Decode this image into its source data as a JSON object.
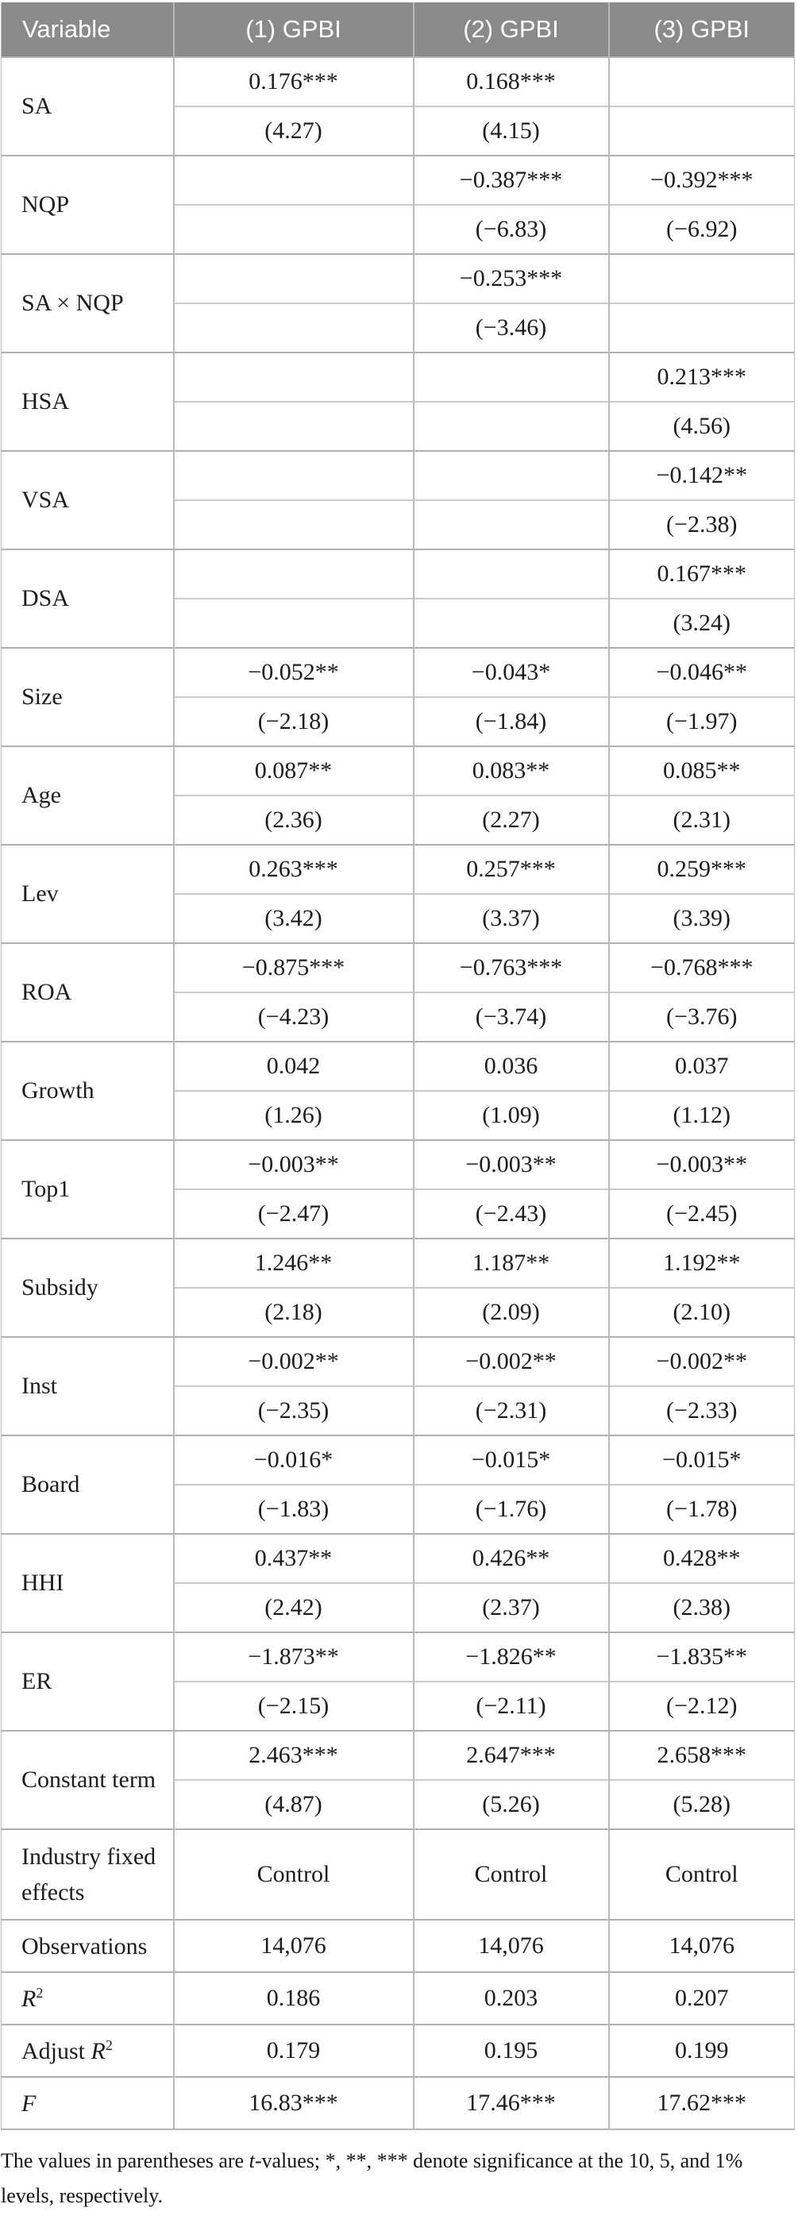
{
  "table": {
    "header": [
      "Variable",
      "(1) GPBI",
      "(2) GPBI",
      "(3) GPBI"
    ],
    "variables": [
      {
        "name": "SA",
        "cols": [
          {
            "coef": "0.176***",
            "t": "(4.27)"
          },
          {
            "coef": "0.168***",
            "t": "(4.15)"
          },
          {
            "coef": "",
            "t": ""
          }
        ]
      },
      {
        "name": "NQP",
        "cols": [
          {
            "coef": "",
            "t": ""
          },
          {
            "coef": "−0.387***",
            "t": "(−6.83)"
          },
          {
            "coef": "−0.392***",
            "t": "(−6.92)"
          }
        ]
      },
      {
        "name": "SA × NQP",
        "cols": [
          {
            "coef": "",
            "t": ""
          },
          {
            "coef": "−0.253***",
            "t": "(−3.46)"
          },
          {
            "coef": "",
            "t": ""
          }
        ]
      },
      {
        "name": "HSA",
        "cols": [
          {
            "coef": "",
            "t": ""
          },
          {
            "coef": "",
            "t": ""
          },
          {
            "coef": "0.213***",
            "t": "(4.56)"
          }
        ]
      },
      {
        "name": "VSA",
        "cols": [
          {
            "coef": "",
            "t": ""
          },
          {
            "coef": "",
            "t": ""
          },
          {
            "coef": "−0.142**",
            "t": "(−2.38)"
          }
        ]
      },
      {
        "name": "DSA",
        "cols": [
          {
            "coef": "",
            "t": ""
          },
          {
            "coef": "",
            "t": ""
          },
          {
            "coef": "0.167***",
            "t": "(3.24)"
          }
        ]
      },
      {
        "name": "Size",
        "cols": [
          {
            "coef": "−0.052**",
            "t": "(−2.18)"
          },
          {
            "coef": "−0.043*",
            "t": "(−1.84)"
          },
          {
            "coef": "−0.046**",
            "t": "(−1.97)"
          }
        ]
      },
      {
        "name": "Age",
        "cols": [
          {
            "coef": "0.087**",
            "t": "(2.36)"
          },
          {
            "coef": "0.083**",
            "t": "(2.27)"
          },
          {
            "coef": "0.085**",
            "t": "(2.31)"
          }
        ]
      },
      {
        "name": "Lev",
        "cols": [
          {
            "coef": "0.263***",
            "t": "(3.42)"
          },
          {
            "coef": "0.257***",
            "t": "(3.37)"
          },
          {
            "coef": "0.259***",
            "t": "(3.39)"
          }
        ]
      },
      {
        "name": "ROA",
        "cols": [
          {
            "coef": "−0.875***",
            "t": "(−4.23)"
          },
          {
            "coef": "−0.763***",
            "t": "(−3.74)"
          },
          {
            "coef": "−0.768***",
            "t": "(−3.76)"
          }
        ]
      },
      {
        "name": "Growth",
        "cols": [
          {
            "coef": "0.042",
            "t": "(1.26)"
          },
          {
            "coef": "0.036",
            "t": "(1.09)"
          },
          {
            "coef": "0.037",
            "t": "(1.12)"
          }
        ]
      },
      {
        "name": "Top1",
        "cols": [
          {
            "coef": "−0.003**",
            "t": "(−2.47)"
          },
          {
            "coef": "−0.003**",
            "t": "(−2.43)"
          },
          {
            "coef": "−0.003**",
            "t": "(−2.45)"
          }
        ]
      },
      {
        "name": "Subsidy",
        "cols": [
          {
            "coef": "1.246**",
            "t": "(2.18)"
          },
          {
            "coef": "1.187**",
            "t": "(2.09)"
          },
          {
            "coef": "1.192**",
            "t": "(2.10)"
          }
        ]
      },
      {
        "name": "Inst",
        "cols": [
          {
            "coef": "−0.002**",
            "t": "(−2.35)"
          },
          {
            "coef": "−0.002**",
            "t": "(−2.31)"
          },
          {
            "coef": "−0.002**",
            "t": "(−2.33)"
          }
        ]
      },
      {
        "name": "Board",
        "cols": [
          {
            "coef": "−0.016*",
            "t": "(−1.83)"
          },
          {
            "coef": "−0.015*",
            "t": "(−1.76)"
          },
          {
            "coef": "−0.015*",
            "t": "(−1.78)"
          }
        ]
      },
      {
        "name": "HHI",
        "cols": [
          {
            "coef": "0.437**",
            "t": "(2.42)"
          },
          {
            "coef": "0.426**",
            "t": "(2.37)"
          },
          {
            "coef": "0.428**",
            "t": "(2.38)"
          }
        ]
      },
      {
        "name": "ER",
        "cols": [
          {
            "coef": "−1.873**",
            "t": "(−2.15)"
          },
          {
            "coef": "−1.826**",
            "t": "(−2.11)"
          },
          {
            "coef": "−1.835**",
            "t": "(−2.12)"
          }
        ]
      },
      {
        "name": "Constant term",
        "cols": [
          {
            "coef": "2.463***",
            "t": "(4.87)"
          },
          {
            "coef": "2.647***",
            "t": "(5.26)"
          },
          {
            "coef": "2.658***",
            "t": "(5.28)"
          }
        ]
      }
    ],
    "summary_rows": [
      {
        "tall": true,
        "label": [
          {
            "text": "Industry fixed effects"
          }
        ],
        "values": [
          "Control",
          "Control",
          "Control"
        ]
      },
      {
        "tall": false,
        "label": [
          {
            "text": "Observations"
          }
        ],
        "values": [
          "14,076",
          "14,076",
          "14,076"
        ]
      },
      {
        "tall": false,
        "label": [
          {
            "text": "R",
            "italic": true
          },
          {
            "text": "2",
            "sup": true
          }
        ],
        "values": [
          "0.186",
          "0.203",
          "0.207"
        ]
      },
      {
        "tall": false,
        "label": [
          {
            "text": "Adjust "
          },
          {
            "text": "R",
            "italic": true
          },
          {
            "text": "2",
            "sup": true
          }
        ],
        "values": [
          "0.179",
          "0.195",
          "0.199"
        ]
      },
      {
        "tall": false,
        "label": [
          {
            "text": "F",
            "italic": true
          }
        ],
        "values": [
          "16.83***",
          "17.46***",
          "17.62***"
        ]
      }
    ]
  },
  "footnote": [
    {
      "text": "The values in parentheses are "
    },
    {
      "text": "t",
      "italic": true
    },
    {
      "text": "-values; *, **, *** denote significance at the 10, 5, and 1% levels, respectively."
    }
  ]
}
